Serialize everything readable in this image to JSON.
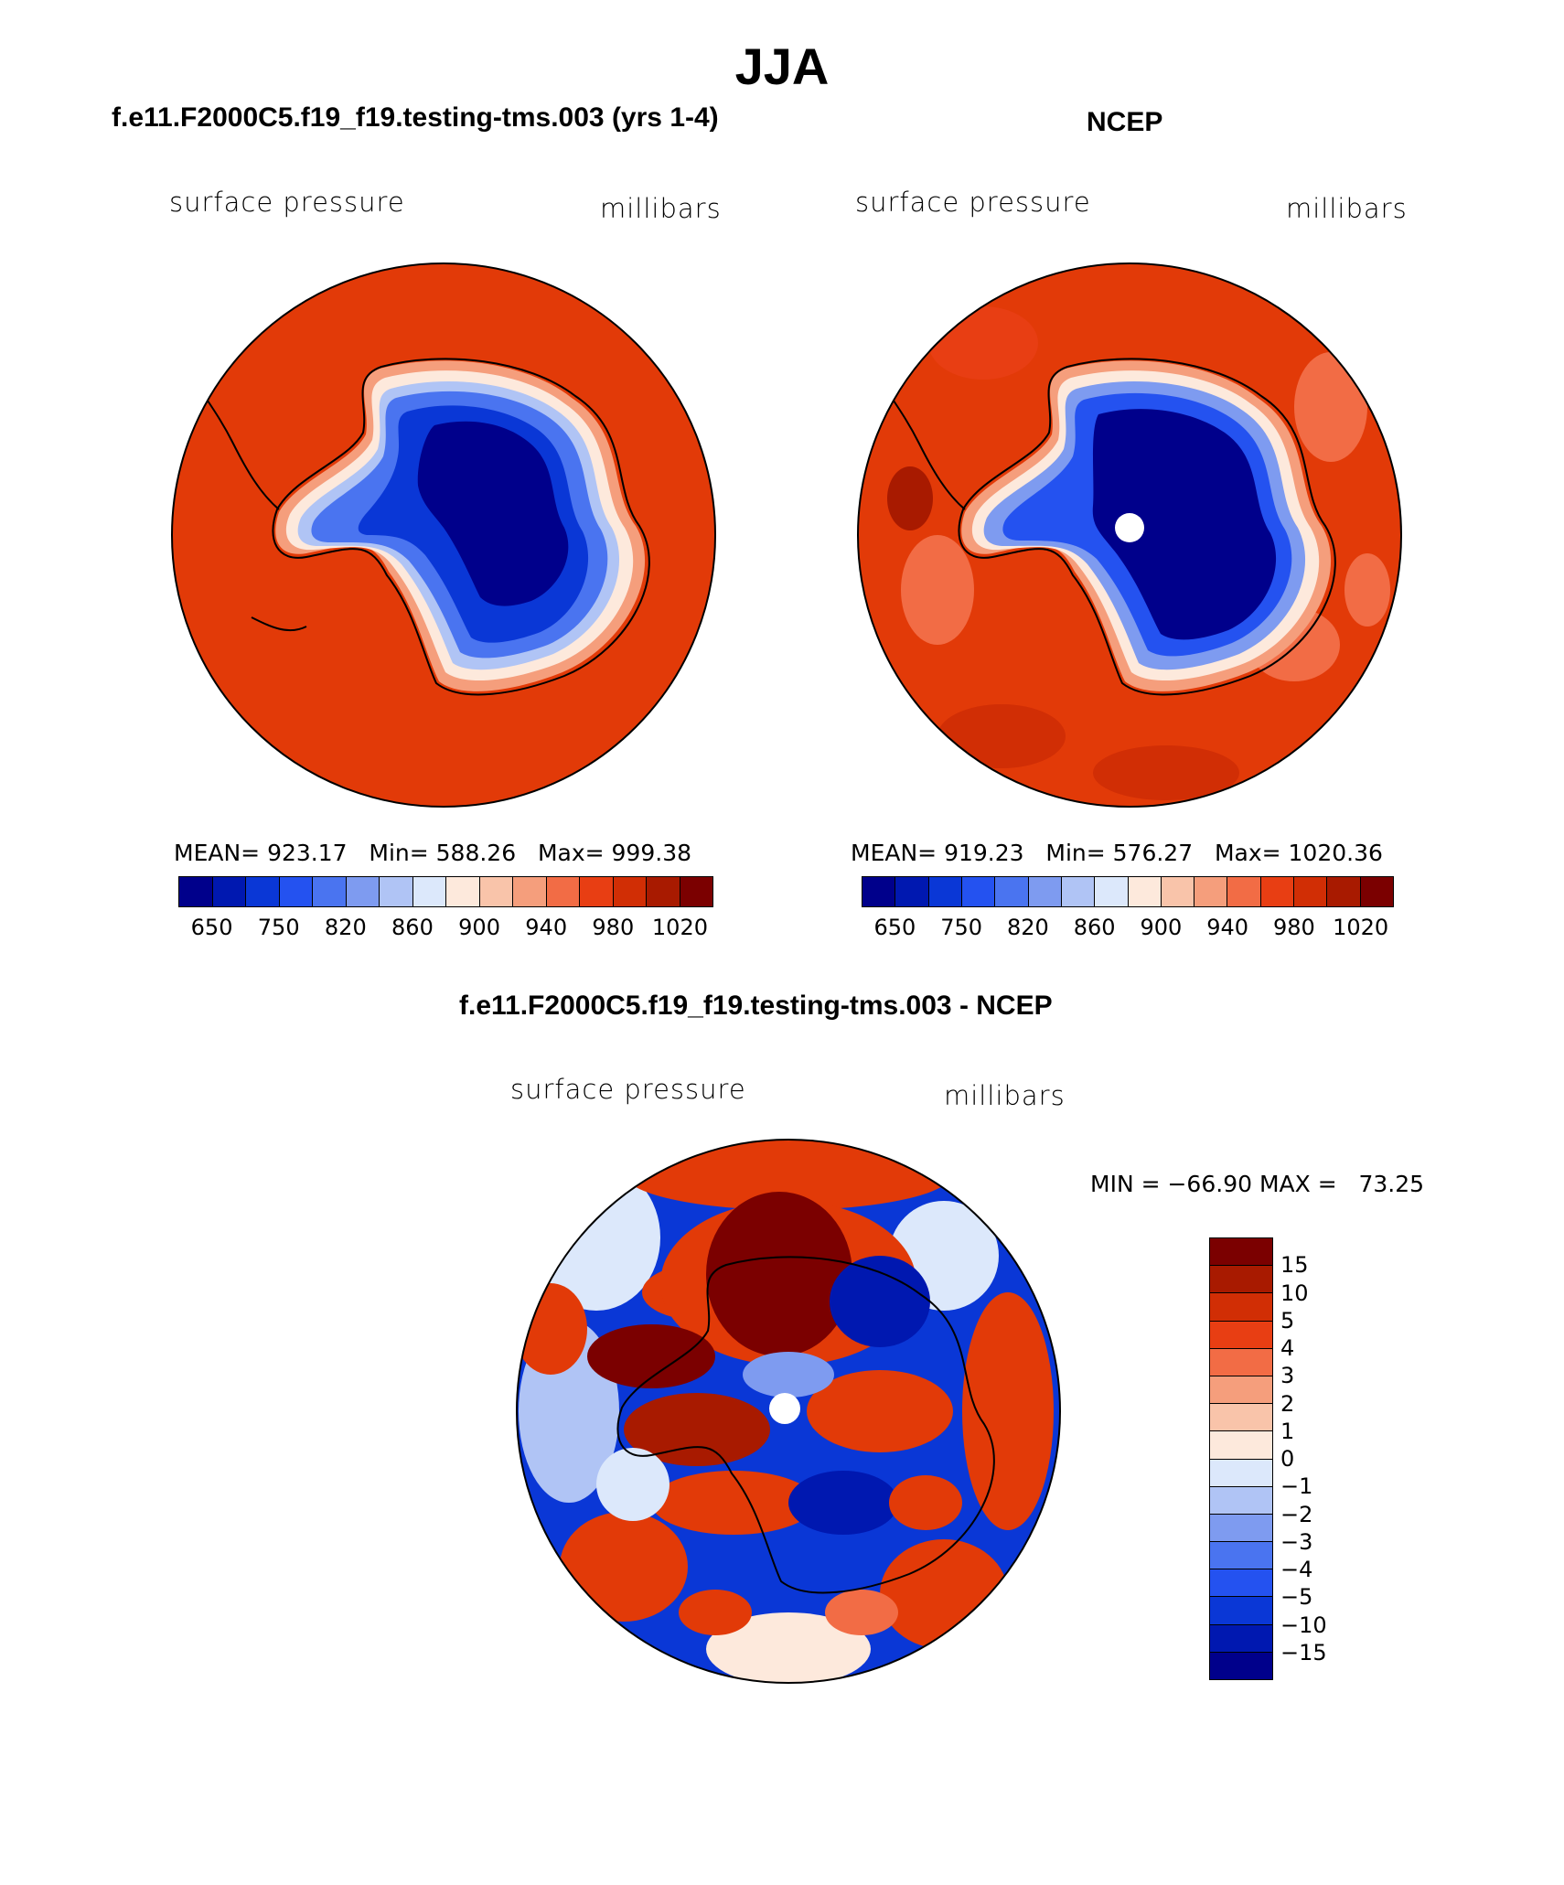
{
  "title": "JJA",
  "colors": {
    "abs_scale": [
      "#00008b",
      "#0018b0",
      "#0a37d6",
      "#2452f0",
      "#4a74f0",
      "#7e9bf0",
      "#b0c4f5",
      "#dce8fb",
      "#fde9dc",
      "#f9c4aa",
      "#f59e7c",
      "#f26c45",
      "#e83e13",
      "#d12e05",
      "#a81a00",
      "#7b0000"
    ],
    "diff_scale": [
      "#7b0000",
      "#a81a00",
      "#d12e05",
      "#e83e13",
      "#f26c45",
      "#f59e7c",
      "#f9c4aa",
      "#fde9dc",
      "#dce8fb",
      "#b0c4f5",
      "#7e9bf0",
      "#4a74f0",
      "#2452f0",
      "#0a37d6",
      "#0018b0",
      "#00008b"
    ],
    "ocean": "#e23a08"
  },
  "panels": [
    {
      "heading": "f.e11.F2000C5.f19_f19.testing-tms.003 (yrs 1-4)",
      "left_label": "surface pressure",
      "right_label": "millibars",
      "stats": "MEAN= 923.17   Min= 588.26   Max= 999.38",
      "ticks": [
        "650",
        "750",
        "820",
        "860",
        "900",
        "940",
        "980",
        "1020"
      ]
    },
    {
      "heading": "NCEP",
      "left_label": "surface pressure",
      "right_label": "millibars",
      "stats": "MEAN= 919.23   Min= 576.27   Max= 1020.36",
      "ticks": [
        "650",
        "750",
        "820",
        "860",
        "900",
        "940",
        "980",
        "1020"
      ]
    }
  ],
  "diff": {
    "heading": "f.e11.F2000C5.f19_f19.testing-tms.003 - NCEP",
    "left_label": "surface pressure",
    "right_label": "millibars",
    "minmax": "MIN = −66.90 MAX =   73.25",
    "ticks": [
      "15",
      "10",
      "5",
      "4",
      "3",
      "2",
      "1",
      "0",
      "−1",
      "−2",
      "−3",
      "−4",
      "−5",
      "−10",
      "−15"
    ]
  },
  "chart_data": {
    "type": "heatmap",
    "title": "JJA",
    "maps": [
      {
        "name": "f.e11.F2000C5.f19_f19.testing-tms.003 (yrs 1-4)",
        "variable": "surface pressure",
        "units": "millibars",
        "mean": 923.17,
        "min": 588.26,
        "max": 999.38,
        "levels": [
          650,
          750,
          820,
          860,
          900,
          940,
          980,
          1020
        ]
      },
      {
        "name": "NCEP",
        "variable": "surface pressure",
        "units": "millibars",
        "mean": 919.23,
        "min": 576.27,
        "max": 1020.36,
        "levels": [
          650,
          750,
          820,
          860,
          900,
          940,
          980,
          1020
        ]
      },
      {
        "name": "f.e11.F2000C5.f19_f19.testing-tms.003 - NCEP",
        "variable": "surface pressure",
        "units": "millibars",
        "min": -66.9,
        "max": 73.25,
        "levels": [
          15,
          10,
          5,
          4,
          3,
          2,
          1,
          0,
          -1,
          -2,
          -3,
          -4,
          -5,
          -10,
          -15
        ]
      }
    ]
  }
}
